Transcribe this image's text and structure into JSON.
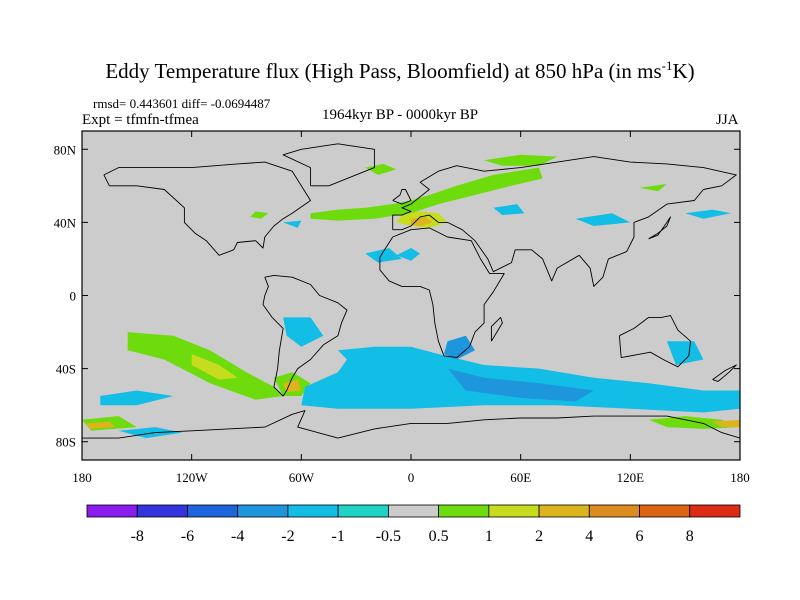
{
  "chart_data": {
    "type": "heatmap",
    "title": "Eddy Temperature flux (High Pass, Bloomfield) at 850 hPa (in ms",
    "title_sup": "-1",
    "title_end": "K)",
    "rmsd_text": "rmsd= 0.443601 diff= -0.0694487",
    "expt_text": "Expt = tfmfn-tfmea",
    "period_text": "1964kyr BP - 0000kyr BP",
    "season_text": "JJA",
    "xlim": [
      -180,
      180
    ],
    "ylim": [
      -90,
      90
    ],
    "x_ticks": [
      {
        "value": -180,
        "label": "180"
      },
      {
        "value": -120,
        "label": "120W"
      },
      {
        "value": -60,
        "label": "60W"
      },
      {
        "value": 0,
        "label": "0"
      },
      {
        "value": 60,
        "label": "60E"
      },
      {
        "value": 120,
        "label": "120E"
      },
      {
        "value": 180,
        "label": "180"
      }
    ],
    "y_ticks": [
      {
        "value": 80,
        "label": "80N"
      },
      {
        "value": 40,
        "label": "40N"
      },
      {
        "value": 0,
        "label": "0"
      },
      {
        "value": -40,
        "label": "40S"
      },
      {
        "value": -80,
        "label": "80S"
      }
    ],
    "colorbar": {
      "colors": [
        "#8a1cf0",
        "#3434dd",
        "#1e64dc",
        "#1e96dc",
        "#12bde6",
        "#1ed2c6",
        "#cccccc",
        "#6edc0c",
        "#c8dc1e",
        "#dcb41e",
        "#dc8c1e",
        "#dc6414",
        "#dc2d14"
      ],
      "labels": [
        "-8",
        "-6",
        "-4",
        "-2",
        "-1",
        "-0.5",
        "0.5",
        "1",
        "2",
        "4",
        "6",
        "8"
      ]
    },
    "regions": [
      {
        "name": "north-atlantic-band",
        "level": 1,
        "points": [
          [
            -55,
            45
          ],
          [
            -40,
            47
          ],
          [
            -25,
            48
          ],
          [
            -10,
            50
          ],
          [
            0,
            52
          ],
          [
            10,
            55
          ],
          [
            25,
            60
          ],
          [
            45,
            66
          ],
          [
            70,
            70
          ],
          [
            72,
            64
          ],
          [
            55,
            60
          ],
          [
            35,
            55
          ],
          [
            15,
            50
          ],
          [
            0,
            45
          ],
          [
            -20,
            42
          ],
          [
            -40,
            41
          ],
          [
            -55,
            42
          ]
        ]
      },
      {
        "name": "europe-core",
        "level": 2,
        "points": [
          [
            -5,
            44
          ],
          [
            5,
            46
          ],
          [
            15,
            45
          ],
          [
            20,
            40
          ],
          [
            10,
            37
          ],
          [
            0,
            38
          ],
          [
            -8,
            40
          ]
        ]
      },
      {
        "name": "europe-peak",
        "level": 4,
        "points": [
          [
            0,
            42
          ],
          [
            8,
            43
          ],
          [
            12,
            40
          ],
          [
            5,
            38
          ],
          [
            0,
            39
          ]
        ]
      },
      {
        "name": "iceland-patch",
        "level": 1,
        "points": [
          [
            -25,
            70
          ],
          [
            -15,
            72
          ],
          [
            -8,
            69
          ],
          [
            -18,
            66
          ]
        ]
      },
      {
        "name": "arctic-russia",
        "level": 1,
        "points": [
          [
            40,
            74
          ],
          [
            60,
            77
          ],
          [
            80,
            76
          ],
          [
            70,
            71
          ],
          [
            50,
            71
          ]
        ]
      },
      {
        "name": "nw-pacific",
        "level": 1,
        "points": [
          [
            125,
            59
          ],
          [
            140,
            61
          ],
          [
            135,
            57
          ]
        ]
      },
      {
        "name": "great-lakes",
        "level": 1,
        "points": [
          [
            -85,
            46
          ],
          [
            -78,
            45
          ],
          [
            -82,
            42
          ],
          [
            -88,
            43
          ]
        ]
      },
      {
        "name": "north-africa-blue",
        "level": -1,
        "points": [
          [
            -8,
            22
          ],
          [
            0,
            26
          ],
          [
            5,
            23
          ],
          [
            0,
            19
          ]
        ]
      },
      {
        "name": "sahara-blue",
        "level": -1,
        "points": [
          [
            -25,
            23
          ],
          [
            -12,
            26
          ],
          [
            -5,
            20
          ],
          [
            -18,
            18
          ]
        ]
      },
      {
        "name": "east-europe-blue",
        "level": -1,
        "points": [
          [
            45,
            48
          ],
          [
            58,
            50
          ],
          [
            62,
            45
          ],
          [
            50,
            44
          ]
        ]
      },
      {
        "name": "north-pacific-blue",
        "level": -1,
        "points": [
          [
            150,
            45
          ],
          [
            165,
            47
          ],
          [
            175,
            45
          ],
          [
            160,
            42
          ]
        ]
      },
      {
        "name": "mid-atlantic-blue",
        "level": -1,
        "points": [
          [
            -70,
            40
          ],
          [
            -60,
            41
          ],
          [
            -62,
            37
          ]
        ]
      },
      {
        "name": "china-blue",
        "level": -1,
        "points": [
          [
            90,
            42
          ],
          [
            110,
            45
          ],
          [
            120,
            40
          ],
          [
            100,
            38
          ]
        ]
      },
      {
        "name": "south-pacific-band",
        "level": 1,
        "points": [
          [
            -155,
            -20
          ],
          [
            -130,
            -22
          ],
          [
            -110,
            -30
          ],
          [
            -90,
            -42
          ],
          [
            -75,
            -50
          ],
          [
            -70,
            -55
          ],
          [
            -85,
            -57
          ],
          [
            -110,
            -48
          ],
          [
            -135,
            -35
          ],
          [
            -155,
            -30
          ]
        ]
      },
      {
        "name": "south-pacific-core",
        "level": 2,
        "points": [
          [
            -120,
            -32
          ],
          [
            -105,
            -38
          ],
          [
            -95,
            -45
          ],
          [
            -105,
            -46
          ],
          [
            -120,
            -38
          ]
        ]
      },
      {
        "name": "south-america-green",
        "level": 1,
        "points": [
          [
            -75,
            -45
          ],
          [
            -65,
            -42
          ],
          [
            -55,
            -48
          ],
          [
            -60,
            -55
          ],
          [
            -70,
            -55
          ]
        ]
      },
      {
        "name": "patagonia-yellow",
        "level": 4,
        "points": [
          [
            -70,
            -48
          ],
          [
            -62,
            -46
          ],
          [
            -60,
            -52
          ],
          [
            -68,
            -53
          ]
        ]
      },
      {
        "name": "south-atlantic-green",
        "level": 1,
        "points": [
          [
            -60,
            -57
          ],
          [
            -45,
            -56
          ],
          [
            -35,
            -60
          ],
          0
        ]
      },
      {
        "name": "ross-sea-green",
        "level": 1,
        "points": [
          [
            -180,
            -68
          ],
          [
            -160,
            -66
          ],
          [
            -150,
            -72
          ],
          [
            -175,
            -74
          ]
        ]
      },
      {
        "name": "ross-sea-yellow",
        "level": 4,
        "points": [
          [
            -178,
            -70
          ],
          [
            -165,
            -69
          ],
          [
            -162,
            -72
          ],
          [
            -176,
            -73
          ]
        ]
      },
      {
        "name": "australia-green",
        "level": 1,
        "points": [
          [
            130,
            -68
          ],
          [
            150,
            -66
          ],
          [
            170,
            -68
          ],
          [
            180,
            -72
          ],
          [
            160,
            -73
          ],
          [
            140,
            -72
          ]
        ]
      },
      {
        "name": "australia-yellow",
        "level": 4,
        "points": [
          [
            165,
            -69
          ],
          [
            180,
            -68
          ],
          [
            180,
            -72
          ],
          [
            170,
            -72
          ]
        ]
      },
      {
        "name": "southern-ocean-band",
        "level": -1,
        "points": [
          [
            -40,
            -30
          ],
          [
            -20,
            -28
          ],
          [
            0,
            -28
          ],
          [
            15,
            -32
          ],
          [
            40,
            -38
          ],
          [
            70,
            -40
          ],
          [
            100,
            -45
          ],
          [
            130,
            -48
          ],
          [
            160,
            -52
          ],
          [
            180,
            -52
          ],
          [
            180,
            -62
          ],
          [
            160,
            -64
          ],
          [
            120,
            -62
          ],
          [
            80,
            -60
          ],
          [
            40,
            -60
          ],
          [
            0,
            -62
          ],
          [
            -40,
            -62
          ],
          [
            -60,
            -60
          ],
          [
            -58,
            -50
          ],
          [
            -40,
            -42
          ],
          [
            -35,
            -35
          ]
        ]
      },
      {
        "name": "indian-ocean-blue",
        "level": -2,
        "points": [
          [
            20,
            -40
          ],
          [
            40,
            -45
          ],
          [
            70,
            -48
          ],
          [
            100,
            -52
          ],
          [
            90,
            -58
          ],
          [
            60,
            -56
          ],
          [
            30,
            -52
          ]
        ]
      },
      {
        "name": "south-africa-blue",
        "level": -2,
        "points": [
          [
            20,
            -25
          ],
          [
            30,
            -22
          ],
          [
            35,
            -30
          ],
          [
            25,
            -35
          ],
          [
            18,
            -32
          ]
        ]
      },
      {
        "name": "australia-east-blue",
        "level": -1,
        "points": [
          [
            140,
            -25
          ],
          [
            155,
            -25
          ],
          [
            160,
            -35
          ],
          [
            145,
            -38
          ]
        ]
      },
      {
        "name": "brazil-blue",
        "level": -1,
        "points": [
          [
            -70,
            -12
          ],
          [
            -55,
            -12
          ],
          [
            -48,
            -22
          ],
          [
            -60,
            -28
          ],
          [
            -68,
            -22
          ]
        ]
      },
      {
        "name": "south-pacific-west-blue",
        "level": -1,
        "points": [
          [
            -170,
            -55
          ],
          [
            -150,
            -52
          ],
          [
            -130,
            -55
          ],
          [
            -150,
            -60
          ],
          [
            -170,
            -60
          ]
        ]
      },
      {
        "name": "antarctic-coast-blue",
        "level": -1,
        "points": [
          [
            -160,
            -74
          ],
          [
            -140,
            -72
          ],
          [
            -125,
            -75
          ],
          [
            -145,
            -78
          ]
        ]
      }
    ]
  }
}
